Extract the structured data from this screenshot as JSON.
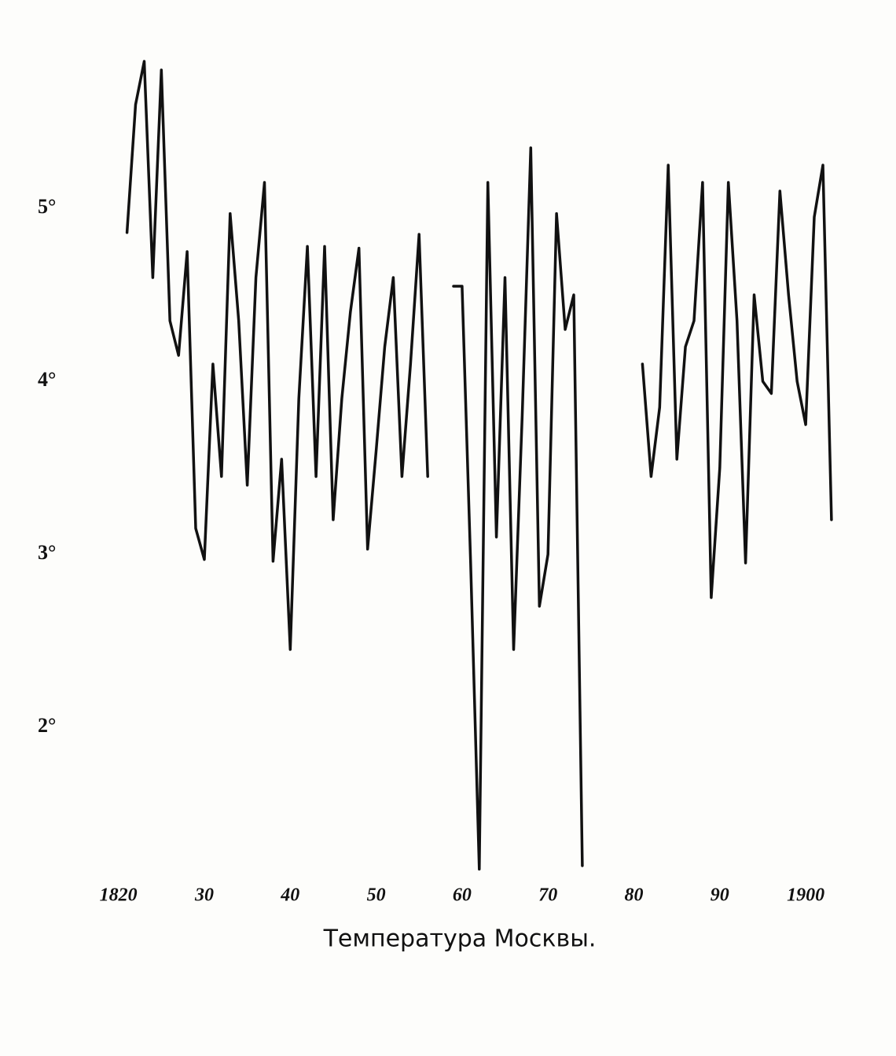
{
  "chart_data": {
    "type": "line",
    "title": "Температура Москвы.",
    "x": [
      1821,
      1822,
      1823,
      1824,
      1825,
      1826,
      1827,
      1828,
      1829,
      1830,
      1831,
      1832,
      1833,
      1834,
      1835,
      1836,
      1837,
      1838,
      1839,
      1840,
      1841,
      1842,
      1843,
      1844,
      1845,
      1846,
      1847,
      1848,
      1849,
      1850,
      1851,
      1852,
      1853,
      1854,
      1855,
      1856,
      1857,
      1858,
      1859,
      1860,
      1861,
      1862,
      1863,
      1864,
      1865,
      1866,
      1867,
      1868,
      1869,
      1870,
      1871,
      1872,
      1873,
      1874,
      1875,
      1876,
      1877,
      1878,
      1879,
      1880,
      1881,
      1882,
      1883,
      1884,
      1885,
      1886,
      1887,
      1888,
      1889,
      1890,
      1891,
      1892,
      1893,
      1894,
      1895,
      1896,
      1897,
      1898,
      1899,
      1900,
      1901,
      1902,
      1903
    ],
    "series": [
      {
        "color": "#111111",
        "values": [
          4.86,
          5.6,
          5.85,
          4.6,
          5.8,
          4.35,
          4.15,
          4.75,
          3.15,
          2.97,
          4.1,
          3.45,
          4.97,
          4.35,
          3.4,
          4.6,
          5.15,
          2.96,
          3.55,
          2.45,
          3.9,
          4.78,
          3.45,
          4.78,
          3.2,
          3.9,
          4.4,
          4.77,
          3.03,
          3.6,
          4.2,
          4.6,
          3.45,
          4.1,
          4.85,
          3.45,
          null,
          null,
          4.55,
          4.55,
          2.95,
          1.18,
          5.15,
          3.1,
          4.6,
          2.45,
          3.8,
          5.35,
          2.7,
          3.0,
          4.97,
          4.3,
          4.5,
          1.2,
          null,
          null,
          null,
          null,
          null,
          null,
          4.1,
          3.45,
          3.85,
          5.25,
          3.55,
          4.2,
          4.35,
          5.15,
          2.75,
          3.5,
          5.15,
          4.35,
          2.95,
          4.5,
          4.0,
          3.93,
          5.1,
          4.5,
          4.0,
          3.75,
          4.95,
          5.25,
          3.2
        ]
      }
    ],
    "xlim": [
      1818,
      1906
    ],
    "xticks": [
      1820,
      {
        "value": 1830,
        "label": "30"
      },
      {
        "value": 1840,
        "label": "40"
      },
      {
        "value": 1850,
        "label": "50"
      },
      {
        "value": 1860,
        "label": "60"
      },
      {
        "value": 1870,
        "label": "70"
      },
      {
        "value": 1880,
        "label": "80"
      },
      {
        "value": 1890,
        "label": "90"
      },
      1900
    ],
    "ylim": [
      1.1,
      6
    ],
    "yticks": [
      {
        "value": 2,
        "label": "2°"
      },
      {
        "value": 3,
        "label": "3°"
      },
      {
        "value": 4,
        "label": "4°"
      },
      {
        "value": 5,
        "label": "5°"
      }
    ],
    "grid": false
  }
}
